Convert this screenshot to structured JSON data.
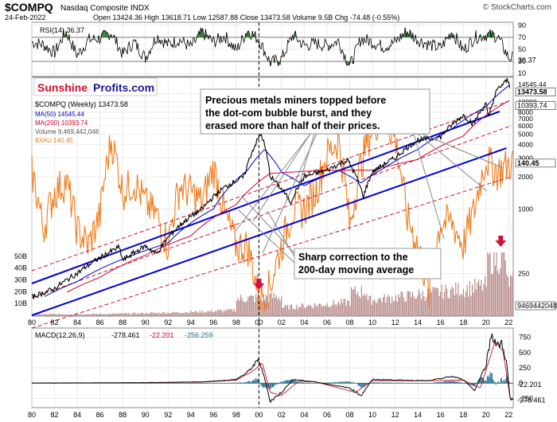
{
  "header": {
    "symbol": "$COMPQ",
    "name": "Nasdaq Composite INDX",
    "watermark": "© StockCharts.com",
    "date": "24-Feb-2022",
    "stats": "Open 13424.36  High 13618.71  Low 12587.88  Close 13473.58  Volume 9.5B  Chg -74.48 (-0.55%)"
  },
  "logo": {
    "part1": "Sunshine",
    "part2": "Profits.com"
  },
  "colors": {
    "compq": "#000000",
    "ma50": "#0000cc",
    "ma200": "#cc0033",
    "volume": "#b08080",
    "xau": "#f07d1e",
    "trend": "#0000dd",
    "channel": "#d01030",
    "rsi_fill": "#2e7d32",
    "macd_signal": "#d01030",
    "macd_hist": "#1c6e8c",
    "arrow": "#d0103a"
  },
  "chart_data": [
    {
      "type": "line",
      "panel": "RSI",
      "title": "RSI(14) 36.37",
      "yticks": [
        90,
        70,
        50,
        30,
        10
      ],
      "ylim": [
        5,
        95
      ],
      "last_value": "36.37",
      "reference_lines": [
        70,
        30
      ],
      "series": [
        {
          "name": "RSI(14)",
          "x": [
            1980,
            1981,
            1982,
            1983,
            1984,
            1985,
            1986,
            1987,
            1988,
            1989,
            1990,
            1991,
            1992,
            1993,
            1994,
            1995,
            1996,
            1997,
            1998,
            1999,
            2000,
            2001,
            2002,
            2003,
            2004,
            2005,
            2006,
            2007,
            2008,
            2009,
            2010,
            2011,
            2012,
            2013,
            2014,
            2015,
            2016,
            2017,
            2018,
            2019,
            2020,
            2021,
            2022
          ],
          "values": [
            62,
            58,
            44,
            80,
            40,
            66,
            68,
            78,
            42,
            62,
            36,
            72,
            58,
            66,
            54,
            78,
            62,
            72,
            48,
            82,
            66,
            28,
            34,
            74,
            56,
            60,
            56,
            64,
            22,
            68,
            62,
            54,
            62,
            80,
            66,
            58,
            52,
            80,
            48,
            70,
            74,
            72,
            36
          ]
        }
      ]
    },
    {
      "type": "line",
      "panel": "price",
      "scale": "log",
      "legend": [
        "$COMPQ (Weekly) 13473.58",
        "MA(50) 14545.44",
        "MA(200) 10393.74",
        "Volume 9,469,442,048",
        "$XAU 140.45"
      ],
      "xticks": [
        "80",
        "82",
        "84",
        "86",
        "88",
        "90",
        "92",
        "94",
        "96",
        "98",
        "00",
        "02",
        "04",
        "06",
        "08",
        "10",
        "12",
        "14",
        "16",
        "18",
        "20",
        "22"
      ],
      "yticks_right": [
        12000,
        10000,
        9000,
        8000,
        7000,
        6000,
        5000,
        4000,
        3000,
        2000,
        1000,
        250
      ],
      "volume_ticks_left": [
        "50B",
        "40B",
        "30B",
        "20B",
        "10B"
      ],
      "value_labels": [
        "14545.44",
        "13473.58",
        "10393.74",
        "140.45",
        "9469442048"
      ],
      "ylim": [
        100,
        17000
      ],
      "series": [
        {
          "name": "$COMPQ (Weekly)",
          "x": [
            1980,
            1982,
            1984,
            1986,
            1987.7,
            1988,
            1990,
            1991,
            1993,
            1995,
            1997,
            1998.7,
            2000.2,
            2001,
            2002.8,
            2004,
            2006,
            2007.8,
            2009.2,
            2010,
            2012,
            2014,
            2016,
            2018,
            2018.9,
            2020,
            2020.2,
            2021,
            2021.9,
            2022.15
          ],
          "values": [
            150,
            180,
            250,
            350,
            440,
            330,
            450,
            380,
            700,
            1000,
            1600,
            2000,
            5050,
            2000,
            1150,
            2000,
            2300,
            2850,
            1300,
            2200,
            3000,
            4400,
            4700,
            7500,
            6200,
            9700,
            6900,
            13000,
            16000,
            13473
          ]
        },
        {
          "name": "MA(50)",
          "x": [
            1981,
            1984,
            1988,
            1992,
            1996,
            1999,
            2000.5,
            2002,
            2004,
            2007,
            2009,
            2011,
            2014,
            2017,
            2020,
            2022.15
          ],
          "values": [
            150,
            210,
            340,
            480,
            1000,
            2300,
            3600,
            2200,
            1650,
            2300,
            1750,
            2400,
            3600,
            5600,
            9000,
            14545
          ]
        },
        {
          "name": "MA(200)",
          "x": [
            1983,
            1986,
            1990,
            1994,
            1998,
            2001,
            2004,
            2007,
            2010,
            2014,
            2018,
            2022.15
          ],
          "values": [
            165,
            230,
            370,
            560,
            1100,
            2150,
            2250,
            2300,
            2300,
            2900,
            4800,
            10394
          ]
        },
        {
          "name": "$XAU",
          "axis": "overlay",
          "x": [
            1980,
            1981,
            1982,
            1983,
            1984,
            1985,
            1986,
            1987,
            1988,
            1989,
            1990,
            1991,
            1992,
            1993,
            1994,
            1995,
            1996,
            1997,
            1998,
            1999,
            2000,
            2001,
            2002,
            2003,
            2004,
            2005,
            2006,
            2007,
            2008,
            2009,
            2010,
            2011,
            2012,
            2013,
            2014,
            2015,
            2016,
            2017,
            2018,
            2019,
            2020,
            2021,
            2022.15
          ],
          "values": [
            130,
            80,
            110,
            120,
            80,
            70,
            90,
            170,
            110,
            120,
            100,
            90,
            70,
            115,
            110,
            100,
            135,
            90,
            70,
            70,
            45,
            50,
            70,
            95,
            95,
            110,
            150,
            170,
            80,
            140,
            190,
            210,
            170,
            90,
            70,
            45,
            85,
            85,
            70,
            95,
            145,
            130,
            140
          ]
        }
      ],
      "trend_lines": [
        "upper channel",
        "lower channel"
      ],
      "arrows_down_at": [
        2000,
        2021.3
      ],
      "vertical_marker": 2000,
      "annotations": [
        "Precious metals miners topped before the dot-com bubble burst, and they erased more than half of their prices.",
        "Sharp correction to the 200-day moving average"
      ]
    },
    {
      "type": "line",
      "panel": "MACD",
      "title": "MACD(12,26,9)",
      "legend": [
        "-278.461",
        "-22.201",
        "-256.259"
      ],
      "yticks": [
        750,
        500,
        250,
        0,
        -250
      ],
      "ylim": [
        -400,
        900
      ],
      "last_values": [
        "-22.201",
        "-278.461"
      ],
      "series": [
        {
          "name": "MACD",
          "x": [
            1980,
            1985,
            1990,
            1995,
            1998,
            1999,
            2000,
            2000.5,
            2001,
            2002,
            2003,
            2005,
            2008,
            2009,
            2010,
            2015,
            2017,
            2018,
            2019,
            2020,
            2020.5,
            2021,
            2021.4,
            2021.8,
            2022.15
          ],
          "values": [
            2,
            5,
            8,
            20,
            60,
            180,
            380,
            80,
            -300,
            -150,
            60,
            20,
            -80,
            -200,
            60,
            40,
            110,
            60,
            -120,
            300,
            820,
            600,
            650,
            350,
            -278
          ]
        },
        {
          "name": "Signal",
          "x": [
            1980,
            1990,
            1995,
            1998,
            1999.5,
            2000.3,
            2001,
            2002,
            2003.5,
            2005,
            2008.5,
            2010,
            2015,
            2018,
            2019.5,
            2020.8,
            2021.5,
            2022.15
          ],
          "values": [
            2,
            6,
            18,
            50,
            200,
            330,
            -150,
            -200,
            30,
            20,
            -150,
            40,
            40,
            50,
            -80,
            680,
            520,
            -256
          ]
        }
      ],
      "histogram_value": -22.201
    }
  ]
}
